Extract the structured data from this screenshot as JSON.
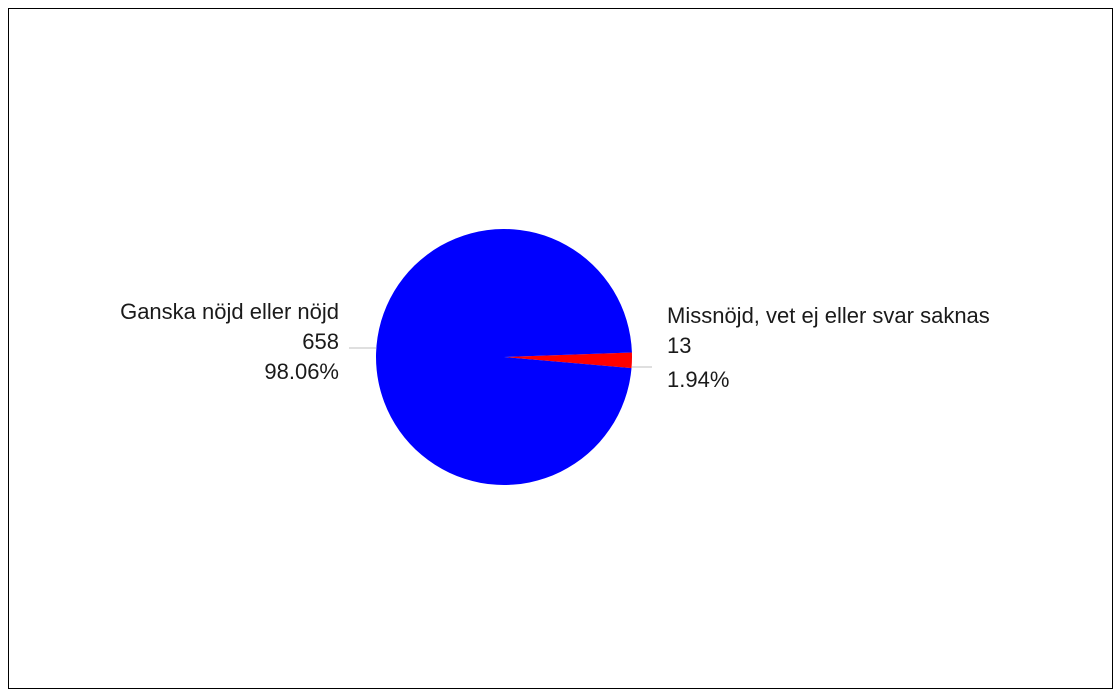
{
  "chart_data": {
    "type": "pie",
    "title": "",
    "slices": [
      {
        "label": "Ganska nöjd eller nöjd",
        "value": 658,
        "percent": "98.06%",
        "color": "#0000ff"
      },
      {
        "label": "Missnöjd, vet ej eller svar saknas",
        "value": 13,
        "percent": "1.94%",
        "color": "#ff0000"
      }
    ]
  }
}
